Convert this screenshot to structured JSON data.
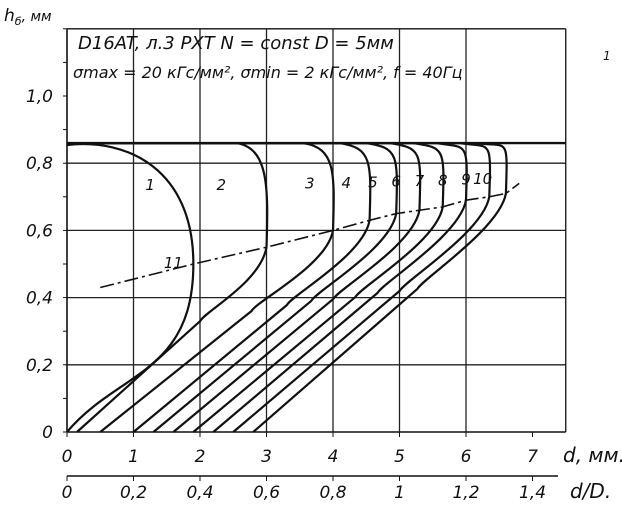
{
  "chart_data": {
    "type": "line",
    "ylabel": "h",
    "ylabel_subscript": "б",
    "ylabel_unit": ", мм",
    "xlabel": "d, мм.",
    "xlabel2": "d/D.",
    "header_lines": [
      "D16AT, л.3 РХТ   N = const   D = 5мм",
      "σmax = 20 кГс/мм², σmin = 2 кГс/мм², f = 40Гц"
    ],
    "corner_mark": "1",
    "xlim": [
      0,
      7.5
    ],
    "ylim": [
      0,
      1.2
    ],
    "x_ticks": [
      {
        "v": 0,
        "label": "0"
      },
      {
        "v": 1,
        "label": "1"
      },
      {
        "v": 2,
        "label": "2"
      },
      {
        "v": 3,
        "label": "3"
      },
      {
        "v": 4,
        "label": "4"
      },
      {
        "v": 5,
        "label": "5"
      },
      {
        "v": 6,
        "label": "6"
      },
      {
        "v": 7,
        "label": "7"
      }
    ],
    "x2_ticks": [
      {
        "v": 0,
        "label": "0"
      },
      {
        "v": 1,
        "label": "0,2"
      },
      {
        "v": 2,
        "label": "0,4"
      },
      {
        "v": 3,
        "label": "0,6"
      },
      {
        "v": 4,
        "label": "0,8"
      },
      {
        "v": 5,
        "label": "1"
      },
      {
        "v": 6,
        "label": "1,2"
      },
      {
        "v": 7,
        "label": "1,4"
      }
    ],
    "y_ticks": [
      {
        "v": 0,
        "label": "0"
      },
      {
        "v": 0.2,
        "label": "0,2"
      },
      {
        "v": 0.4,
        "label": "0,4"
      },
      {
        "v": 0.6,
        "label": "0,6"
      },
      {
        "v": 0.8,
        "label": "0,8"
      },
      {
        "v": 1.0,
        "label": "1,0"
      }
    ],
    "gridlines_x": [
      1,
      2,
      3,
      4,
      5,
      6
    ],
    "gridlines_y": [
      0.2,
      0.4,
      0.6,
      0.8
    ],
    "frame_right_x": 7.5,
    "frame_top_y": 1.2,
    "top_flat_y": 0.86,
    "curves": [
      {
        "label": "1",
        "peak_x": 1.9,
        "peak_y": 0.5,
        "bottom_x": 0.0
      },
      {
        "label": "2",
        "peak_x": 3.0,
        "peak_y": 0.55,
        "bottom_x": 0.15
      },
      {
        "label": "3",
        "peak_x": 4.0,
        "peak_y": 0.6,
        "bottom_x": 0.5
      },
      {
        "label": "4",
        "peak_x": 4.55,
        "peak_y": 0.63,
        "bottom_x": 1.0
      },
      {
        "label": "5",
        "peak_x": 4.95,
        "peak_y": 0.65,
        "bottom_x": 1.3
      },
      {
        "label": "6",
        "peak_x": 5.3,
        "peak_y": 0.66,
        "bottom_x": 1.6
      },
      {
        "label": "7",
        "peak_x": 5.65,
        "peak_y": 0.67,
        "bottom_x": 1.9
      },
      {
        "label": "8",
        "peak_x": 6.0,
        "peak_y": 0.69,
        "bottom_x": 2.2
      },
      {
        "label": "9",
        "peak_x": 6.35,
        "peak_y": 0.7,
        "bottom_x": 2.5
      },
      {
        "label": "10",
        "peak_x": 6.6,
        "peak_y": 0.71,
        "bottom_x": 2.8
      }
    ],
    "curve_11": {
      "label": "11",
      "x": [
        0.5,
        1.9,
        3.0,
        4.0,
        4.55,
        4.95,
        5.3,
        5.65,
        6.0,
        6.35,
        6.6,
        6.8
      ],
      "y": [
        0.43,
        0.5,
        0.55,
        0.6,
        0.63,
        0.65,
        0.66,
        0.67,
        0.69,
        0.7,
        0.71,
        0.74
      ]
    }
  }
}
